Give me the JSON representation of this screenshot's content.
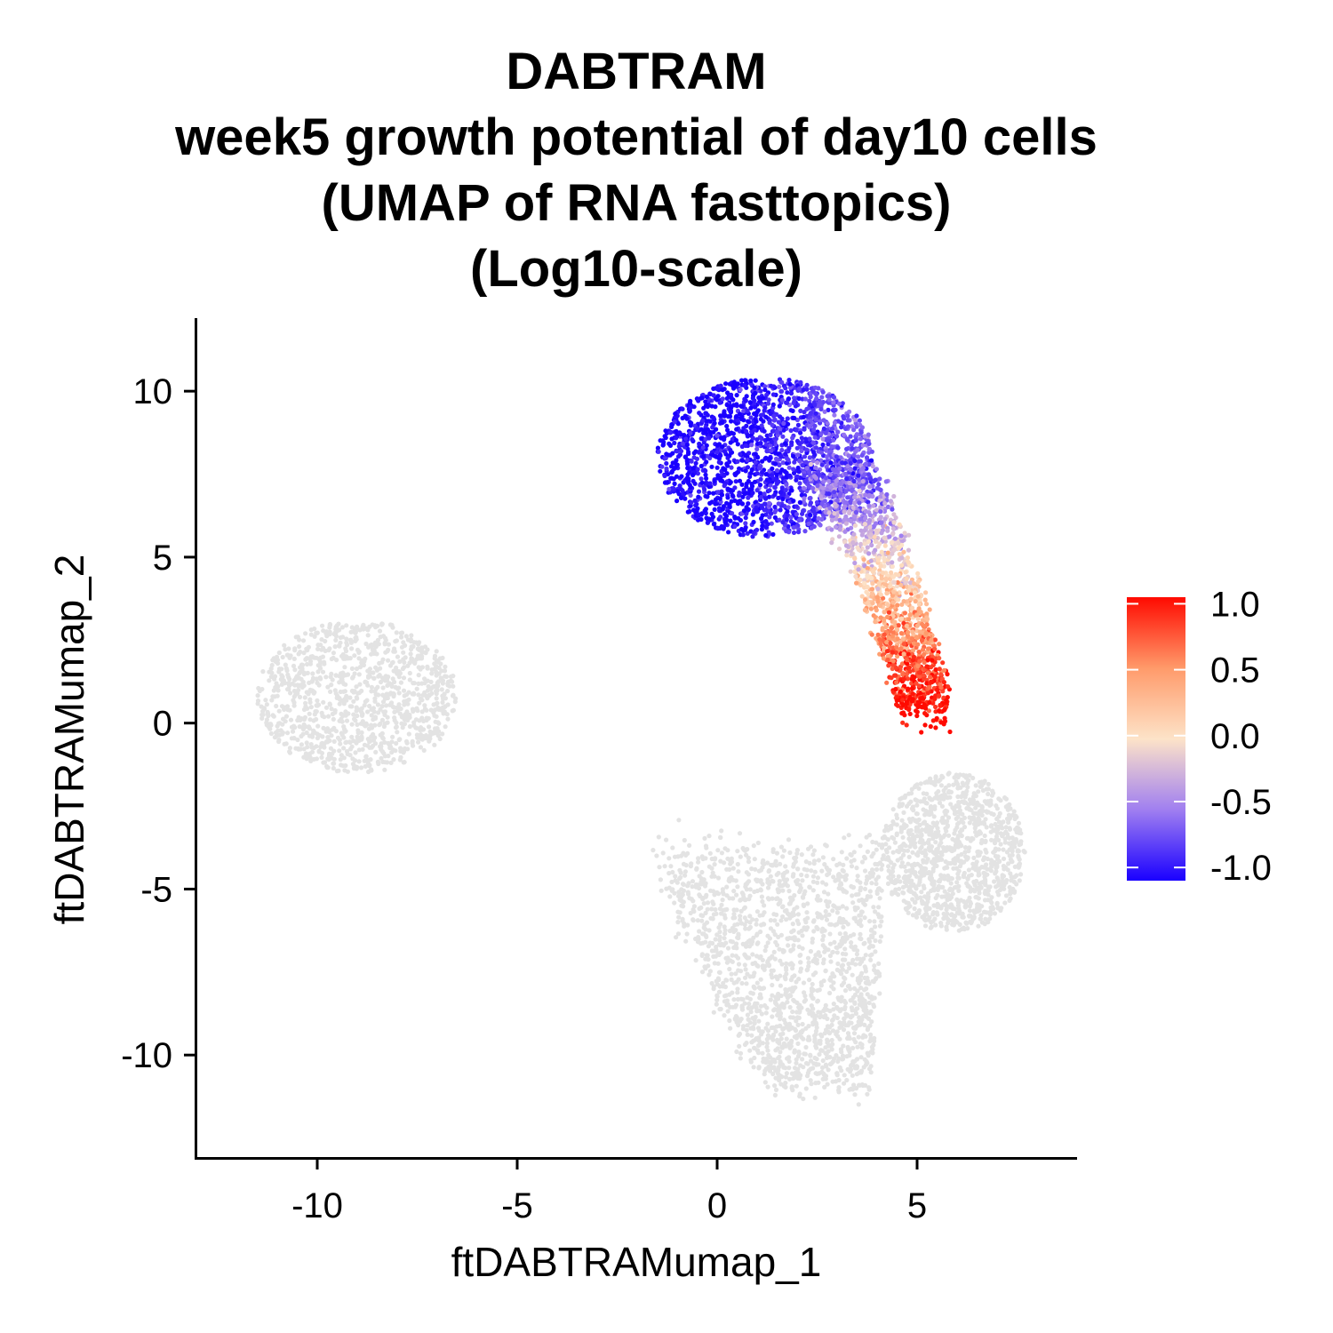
{
  "chart_data": {
    "type": "scatter",
    "title": "DABTRAM",
    "subtitle": [
      "week5 growth potential of day10 cells",
      "(UMAP of RNA fasttopics)",
      "(Log10-scale)"
    ],
    "xlabel": "ftDABTRAMumap_1",
    "ylabel": "ftDABTRAMumap_2",
    "xlim": [
      -13,
      9
    ],
    "ylim": [
      -13.1,
      12.2
    ],
    "xticks": [
      -10,
      -5,
      0,
      5
    ],
    "xtick_labels": [
      "-10",
      "-5",
      "0",
      "5"
    ],
    "yticks": [
      -10,
      -5,
      0,
      5,
      10
    ],
    "ytick_labels": [
      "-10",
      "-5",
      "0",
      "5",
      "10"
    ],
    "grid": false,
    "legend": {
      "position": "right",
      "type": "colorbar",
      "range": [
        -1.1,
        1.05
      ],
      "ticks": [
        1.0,
        0.5,
        0.0,
        -0.5,
        -1.0
      ],
      "tick_labels": [
        "1.0",
        "0.5",
        "0.0",
        "-0.5",
        "-1.0"
      ],
      "colors": {
        "low": "#1a00ff",
        "mid": "#fde3c8",
        "high": "#ff0a00"
      }
    },
    "na_color": "#e3e3e3",
    "clusters": [
      {
        "name": "",
        "center": [
          -9.0,
          0.8
        ],
        "value_trend": "NA"
      },
      {
        "name": "",
        "center": [
          2.5,
          6.5
        ],
        "value_trend": "-1.0 (top-left) to 1.0 (bottom tip at x≈5, y≈0)"
      },
      {
        "name": "",
        "center": [
          1.8,
          -6.8
        ],
        "value_trend": "NA"
      },
      {
        "name": "",
        "center": [
          5.9,
          -4.2
        ],
        "value_trend": "NA"
      }
    ]
  }
}
